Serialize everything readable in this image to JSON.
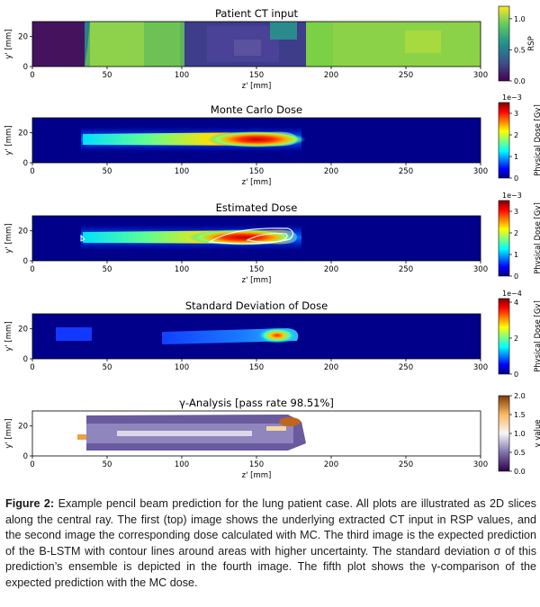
{
  "figure": {
    "panels": [
      {
        "title": "Patient CT input",
        "xlabel": "z' [mm]",
        "ylabel": "y' [mm]",
        "xticks": [
          "0",
          "50",
          "100",
          "150",
          "200",
          "250",
          "300"
        ],
        "yticks": [
          "0",
          "20"
        ],
        "colorbar": {
          "label": "RSP",
          "ticks": [
            "0.0",
            "0.5",
            "1.0"
          ],
          "multiplier": "",
          "colormap": "viridis"
        }
      },
      {
        "title": "Monte Carlo Dose",
        "xlabel": "z' [mm]",
        "ylabel": "y' [mm]",
        "xticks": [
          "0",
          "50",
          "100",
          "150",
          "200",
          "250",
          "300"
        ],
        "yticks": [
          "0",
          "20"
        ],
        "colorbar": {
          "label": "Physical Dose [Gy]",
          "ticks": [
            "0",
            "1",
            "2",
            "3"
          ],
          "multiplier": "1e−3",
          "colormap": "jet"
        }
      },
      {
        "title": "Estimated Dose",
        "xlabel": "z' [mm]",
        "ylabel": "y' [mm]",
        "xticks": [
          "0",
          "50",
          "100",
          "150",
          "200",
          "250",
          "300"
        ],
        "yticks": [
          "0",
          "20"
        ],
        "colorbar": {
          "label": "Physical Dose [Gy]",
          "ticks": [
            "0",
            "1",
            "2",
            "3"
          ],
          "multiplier": "1e−3",
          "colormap": "jet"
        }
      },
      {
        "title": "Standard Deviation of Dose",
        "xlabel": "",
        "ylabel": "y' [mm]",
        "xticks": [
          "0",
          "50",
          "100",
          "150",
          "200",
          "250",
          "300"
        ],
        "yticks": [
          "0",
          "20"
        ],
        "colorbar": {
          "label": "Physical Dose [Gy]",
          "ticks": [
            "0",
            "2",
            "4"
          ],
          "multiplier": "1e−4",
          "colormap": "jet"
        }
      },
      {
        "title": "γ-Analysis [pass rate 98.51%]",
        "xlabel": "z' [mm]",
        "ylabel": "y' [mm]",
        "xticks": [
          "0",
          "50",
          "100",
          "150",
          "200",
          "250",
          "300"
        ],
        "yticks": [
          "0",
          "20"
        ],
        "colorbar": {
          "label": "γ value",
          "ticks": [
            "0.0",
            "0.5",
            "1.0",
            "1.5",
            "2.0"
          ],
          "multiplier": "",
          "colormap": "PuOr"
        }
      }
    ]
  },
  "caption": {
    "label": "Figure 2:",
    "text": " Example pencil beam prediction for the lung patient case. All plots are illustrated as 2D slices along the central ray. The first (top) image shows the underlying extracted CT input in RSP values, and the second image the corresponding dose calculated with MC. The third image is the expected prediction of the B-LSTM with contour lines around areas with higher uncertainty. The standard deviation σ of this prediction’s ensemble is depicted in the fourth image. The fifth plot shows the γ-comparison of the expected prediction with the MC dose."
  }
}
